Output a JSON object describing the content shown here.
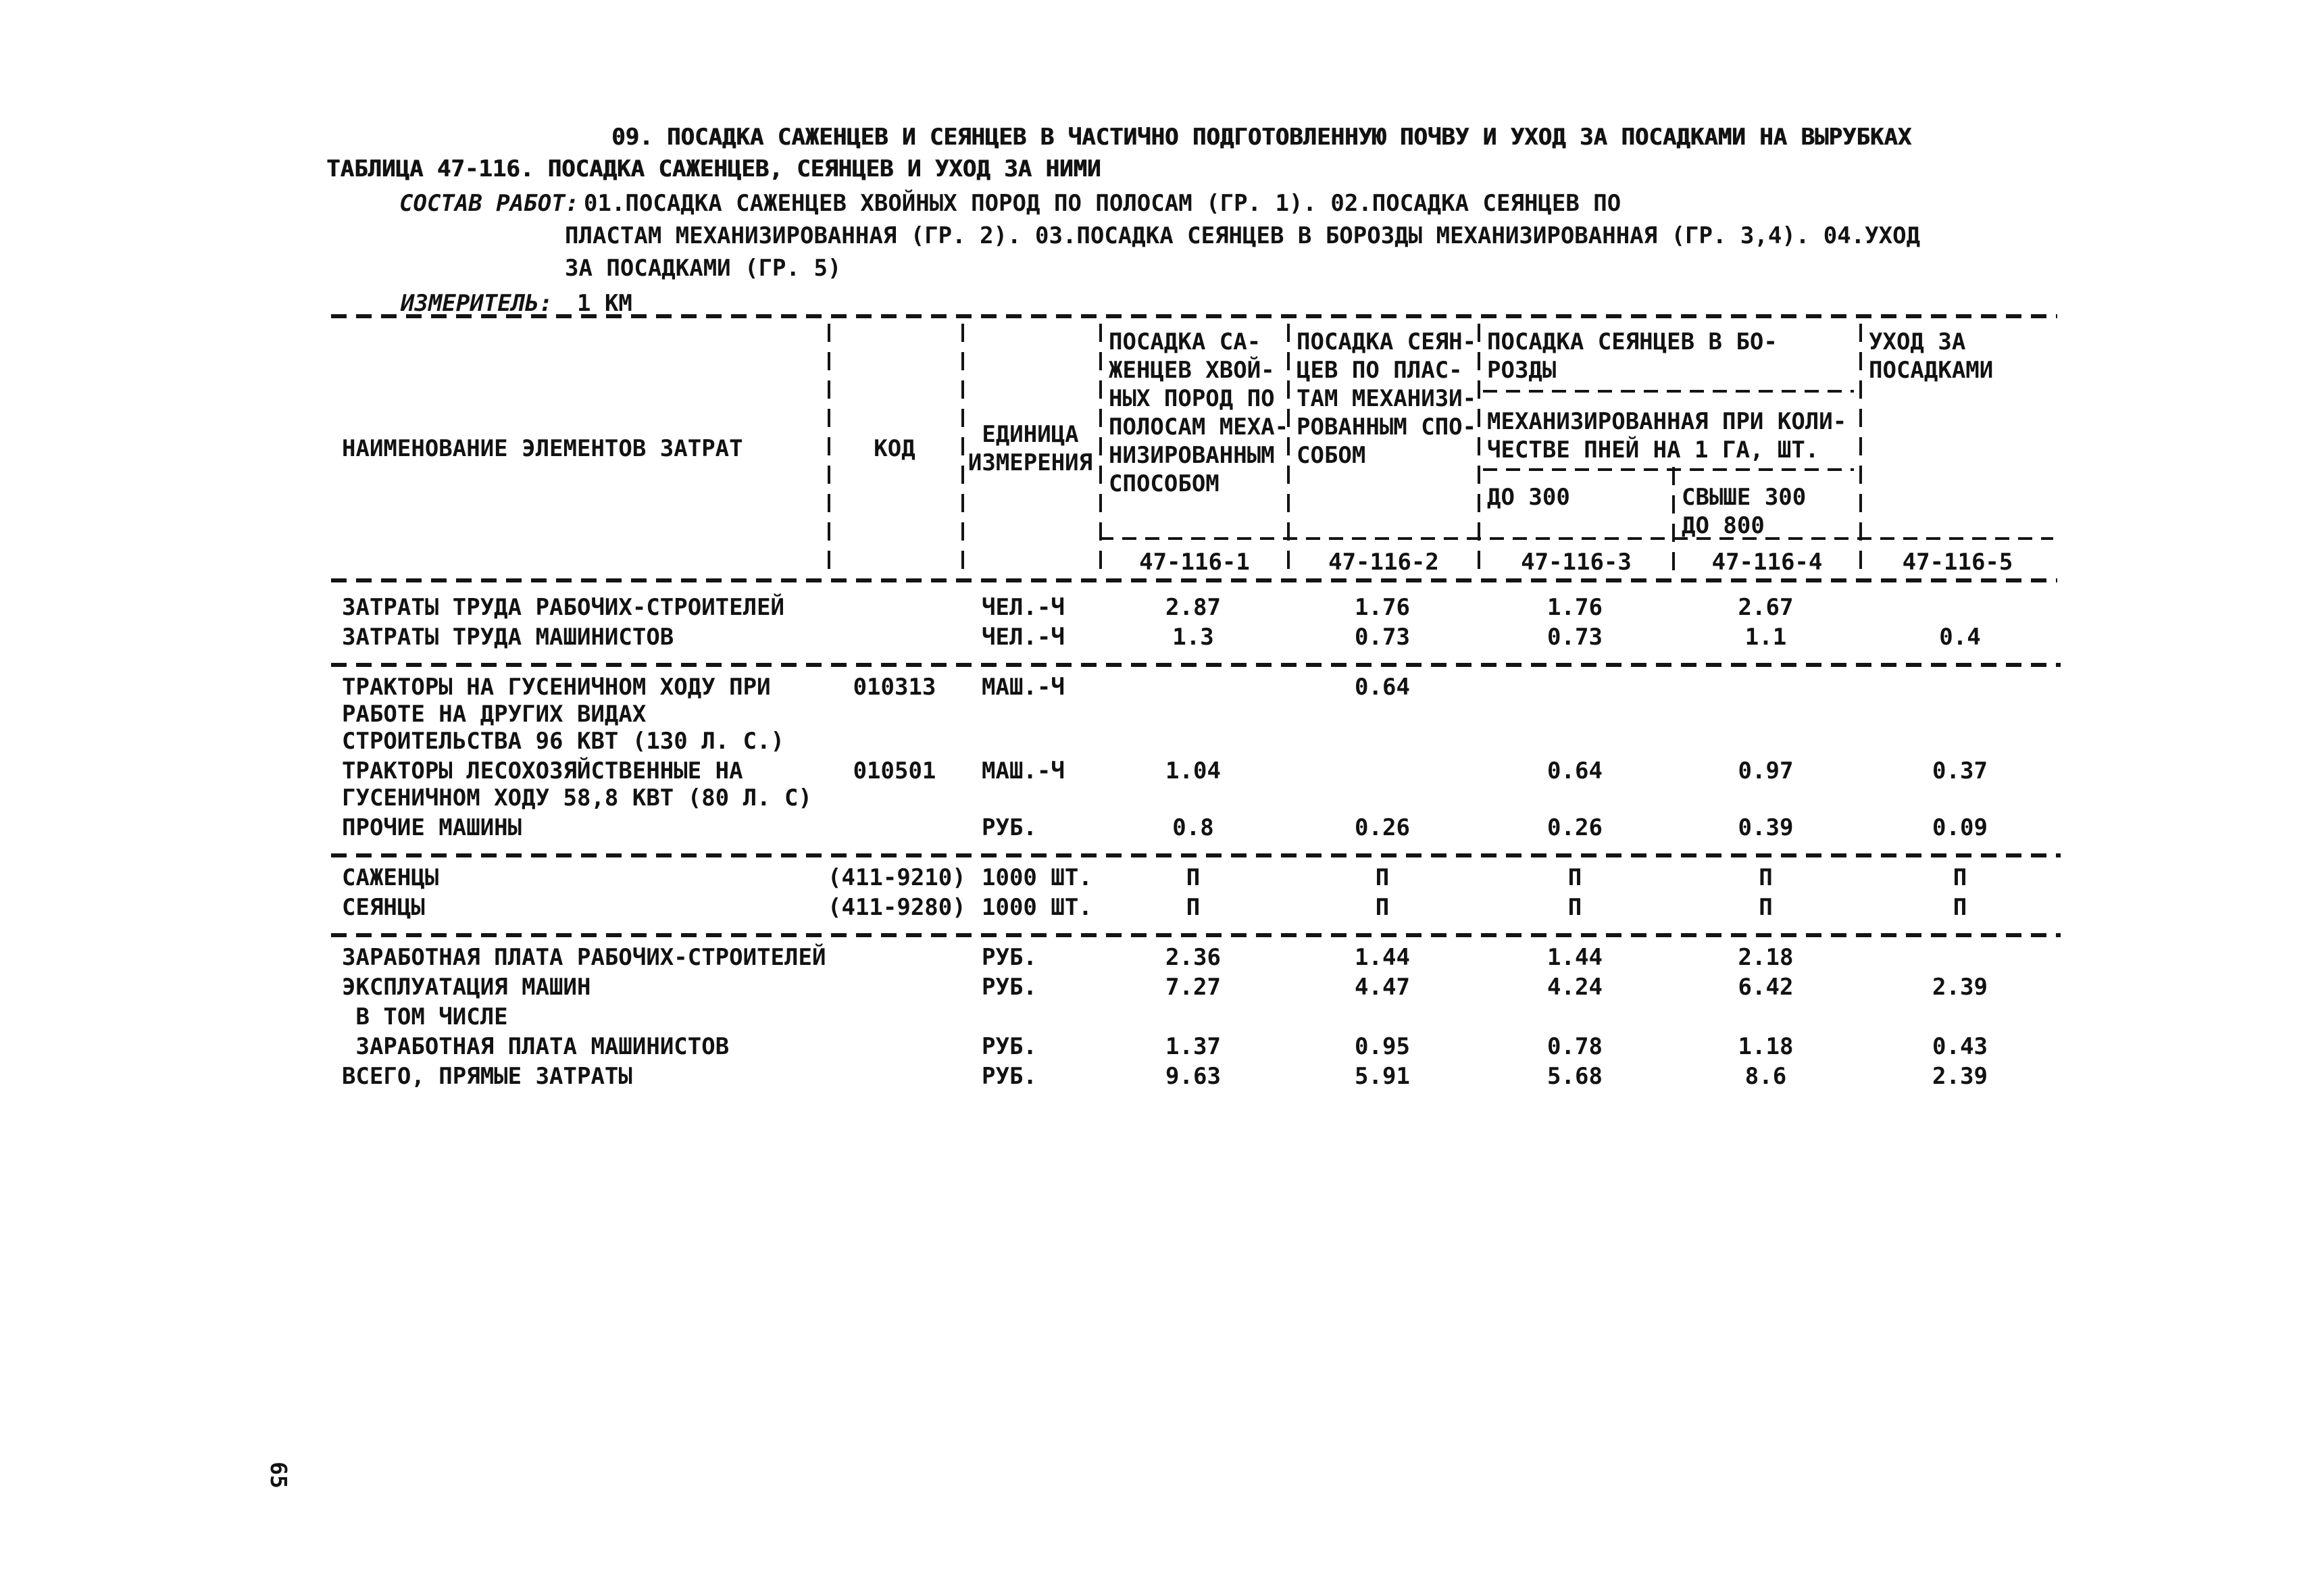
{
  "page": {
    "background": "#ffffff",
    "ink": "#121212",
    "section_title": "09. ПОСАДКА САЖЕНЦЕВ И СЕЯНЦЕВ В ЧАСТИЧНО ПОДГОТОВЛЕННУЮ ПОЧВУ И УХОД ЗА ПОСАДКАМИ НА ВЫРУБКАХ",
    "table_title": "ТАБЛИЦА 47-116. ПОСАДКА САЖЕНЦЕВ, СЕЯНЦЕВ И УХОД ЗА НИМИ",
    "work_scope_label": "СОСТАВ РАБОТ:",
    "work_scope_lines": [
      "01.ПОСАДКА САЖЕНЦЕВ ХВОЙНЫХ ПОРОД ПО ПОЛОСАМ (ГР. 1). 02.ПОСАДКА СЕЯНЦЕВ ПО",
      "ПЛАСТАМ МЕХАНИЗИРОВАННАЯ (ГР. 2). 03.ПОСАДКА СЕЯНЦЕВ В БОРОЗДЫ МЕХАНИЗИРОВАННАЯ (ГР. 3,4). 04.УХОД",
      "ЗА ПОСАДКАМИ (ГР. 5)"
    ],
    "measure_label": "ИЗМЕРИТЕЛЬ:",
    "measure_value": "1 КМ",
    "page_number": "65"
  },
  "table": {
    "col_headers": {
      "name": "НАИМЕНОВАНИЕ ЭЛЕМЕНТОВ ЗАТРАТ",
      "code": "КОД",
      "unit": "ЕДИНИЦА\nИЗМЕРЕНИЯ",
      "group1": "ПОСАДКА СА-\nЖЕНЦЕВ ХВОЙ-\nНЫХ ПОРОД ПО\nПОЛОСАМ МЕХА-\nНИЗИРОВАННЫМ\nСПОСОБОМ",
      "group2": "ПОСАДКА СЕЯН-\nЦЕВ ПО ПЛАС-\nТАМ МЕХАНИЗИ-\nРОВАННЫМ СПО-\nСОБОМ",
      "group34_title": "ПОСАДКА СЕЯНЦЕВ В БО-\nРОЗДЫ",
      "group34_condition": "МЕХАНИЗИРОВАННАЯ ПРИ КОЛИ-\nЧЕСТВЕ ПНЕЙ НА 1 ГА, ШТ.",
      "group3": "ДО 300",
      "group4": "СВЫШЕ 300\nДО 800",
      "group5": "УХОД ЗА\nПОСАДКАМИ"
    },
    "codes": [
      "47-116-1",
      "47-116-2",
      "47-116-3",
      "47-116-4",
      "47-116-5"
    ],
    "groups": [
      [
        {
          "name": "ЗАТРАТЫ ТРУДА РАБОЧИХ-СТРОИТЕЛЕЙ",
          "code": "",
          "unit": "ЧЕЛ.-Ч",
          "values": [
            "2.87",
            "1.76",
            "1.76",
            "2.67",
            ""
          ]
        },
        {
          "name": "ЗАТРАТЫ ТРУДА МАШИНИСТОВ",
          "code": "",
          "unit": "ЧЕЛ.-Ч",
          "values": [
            "1.3",
            "0.73",
            "0.73",
            "1.1",
            "0.4"
          ]
        }
      ],
      [
        {
          "name": "ТРАКТОРЫ НА ГУСЕНИЧНОМ ХОДУ ПРИ\nРАБОТЕ НА ДРУГИХ ВИДАХ\nСТРОИТЕЛЬСТВА 96 КВТ (130 Л. С.)",
          "code": "010313",
          "unit": "МАШ.-Ч",
          "values": [
            "",
            "0.64",
            "",
            "",
            ""
          ]
        },
        {
          "name": "ТРАКТОРЫ ЛЕСОХОЗЯЙСТВЕННЫЕ НА\nГУСЕНИЧНОМ ХОДУ 58,8 КВТ (80 Л. С)",
          "code": "010501",
          "unit": "МАШ.-Ч",
          "values": [
            "1.04",
            "",
            "0.64",
            "0.97",
            "0.37"
          ]
        },
        {
          "name": "ПРОЧИЕ МАШИНЫ",
          "code": "",
          "unit": "РУБ.",
          "values": [
            "0.8",
            "0.26",
            "0.26",
            "0.39",
            "0.09"
          ]
        }
      ],
      [
        {
          "name": "САЖЕНЦЫ",
          "code": "(411-9210)",
          "unit": "1000 ШТ.",
          "values": [
            "П",
            "П",
            "П",
            "П",
            "П"
          ]
        },
        {
          "name": "СЕЯНЦЫ",
          "code": "(411-9280)",
          "unit": "1000 ШТ.",
          "values": [
            "П",
            "П",
            "П",
            "П",
            "П"
          ]
        }
      ],
      [
        {
          "name": "ЗАРАБОТНАЯ ПЛАТА РАБОЧИХ-СТРОИТЕЛЕЙ",
          "code": "",
          "unit": "РУБ.",
          "values": [
            "2.36",
            "1.44",
            "1.44",
            "2.18",
            ""
          ]
        },
        {
          "name": "ЭКСПЛУАТАЦИЯ МАШИН",
          "code": "",
          "unit": "РУБ.",
          "values": [
            "7.27",
            "4.47",
            "4.24",
            "6.42",
            "2.39"
          ]
        },
        {
          "name": " В ТОМ ЧИСЛЕ",
          "code": "",
          "unit": "",
          "values": [
            "",
            "",
            "",
            "",
            ""
          ]
        },
        {
          "name": " ЗАРАБОТНАЯ ПЛАТА МАШИНИСТОВ",
          "code": "",
          "unit": "РУБ.",
          "values": [
            "1.37",
            "0.95",
            "0.78",
            "1.18",
            "0.43"
          ]
        },
        {
          "name": "ВСЕГО, ПРЯМЫЕ ЗАТРАТЫ",
          "code": "",
          "unit": "РУБ.",
          "values": [
            "9.63",
            "5.91",
            "5.68",
            "8.6",
            "2.39"
          ]
        }
      ]
    ]
  }
}
